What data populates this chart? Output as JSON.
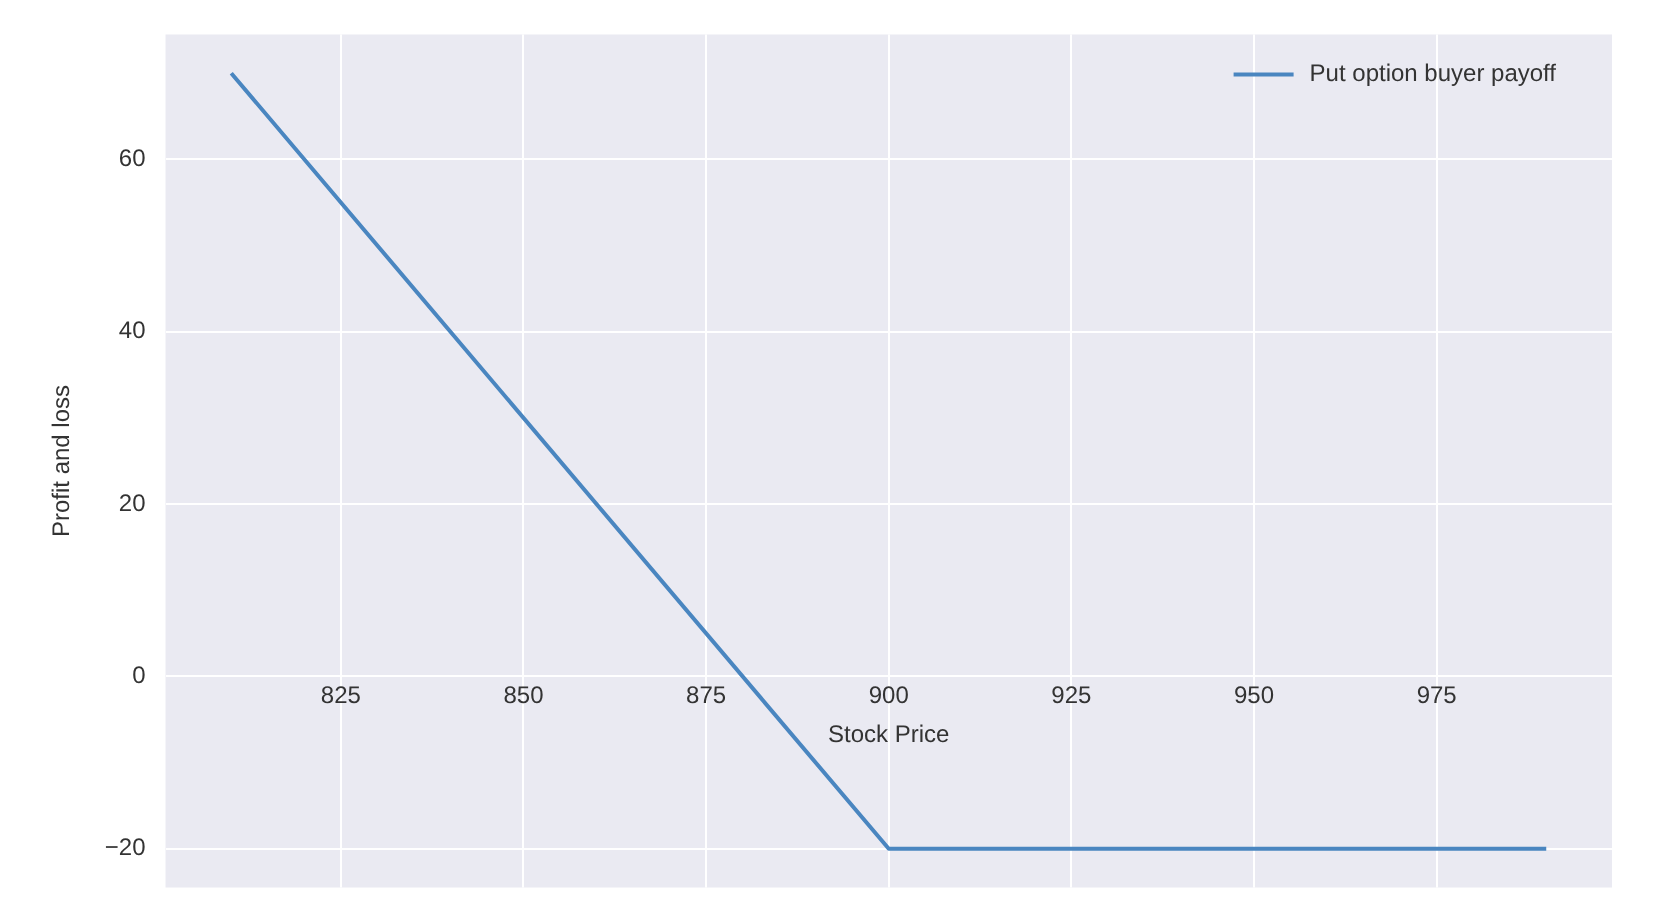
{
  "chart_data": {
    "type": "line",
    "xlabel": "Stock Price",
    "ylabel": "Profit and loss",
    "x": [
      810,
      900,
      990
    ],
    "series": [
      {
        "name": "Put option buyer payoff",
        "color": "#4a86c0",
        "values": [
          70,
          -20,
          -20
        ]
      }
    ],
    "xlim": [
      801,
      999
    ],
    "xticks": [
      825,
      850,
      875,
      900,
      925,
      950,
      975
    ],
    "ylim": [
      -24.5,
      74.5
    ],
    "yticks": [
      {
        "value": -20,
        "label": "−20"
      },
      0,
      20,
      40,
      60
    ],
    "grid": true,
    "legend": "top right",
    "marker": "none",
    "line_style": "solid"
  }
}
